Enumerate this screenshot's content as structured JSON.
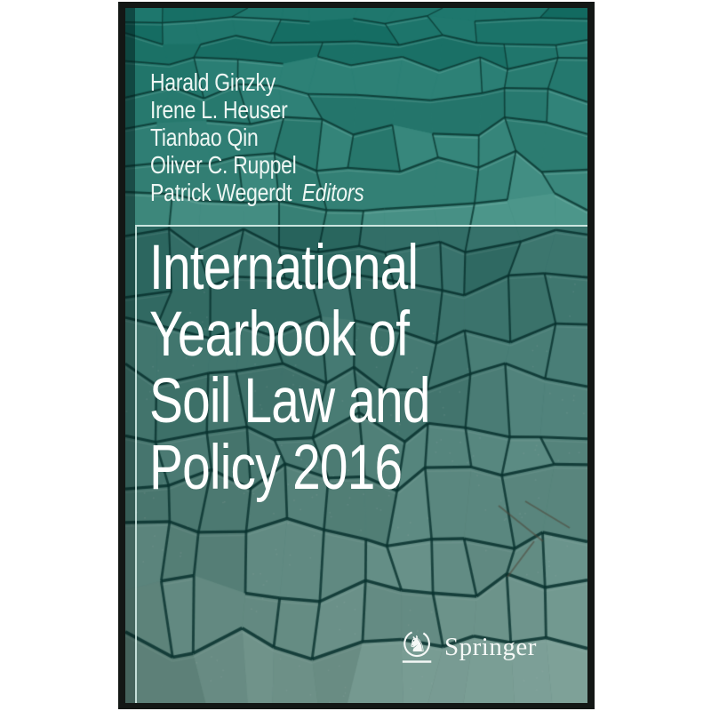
{
  "cover": {
    "editors": [
      "Harald Ginzky",
      "Irene L. Heuser",
      "Tianbao Qin",
      "Oliver C. Ruppel",
      "Patrick Wegerdt"
    ],
    "editors_label": "Editors",
    "title_lines": [
      "International",
      "Yearbook of",
      "Soil Law and"
    ],
    "title_line4_prefix": "Policy",
    "title_year": "2016",
    "publisher": "Springer",
    "icons": {
      "publisher_mark": "springer-horse-knight-icon"
    },
    "colors": {
      "title_text": "#ffffff",
      "year_text": "#9fd0e8",
      "editors_text": "#eef6f3",
      "cover_teal_top": "#17756a",
      "cover_teal_bottom": "#8fb3a5",
      "crack_dark": "#0c3a34",
      "border_black": "#131715"
    }
  }
}
